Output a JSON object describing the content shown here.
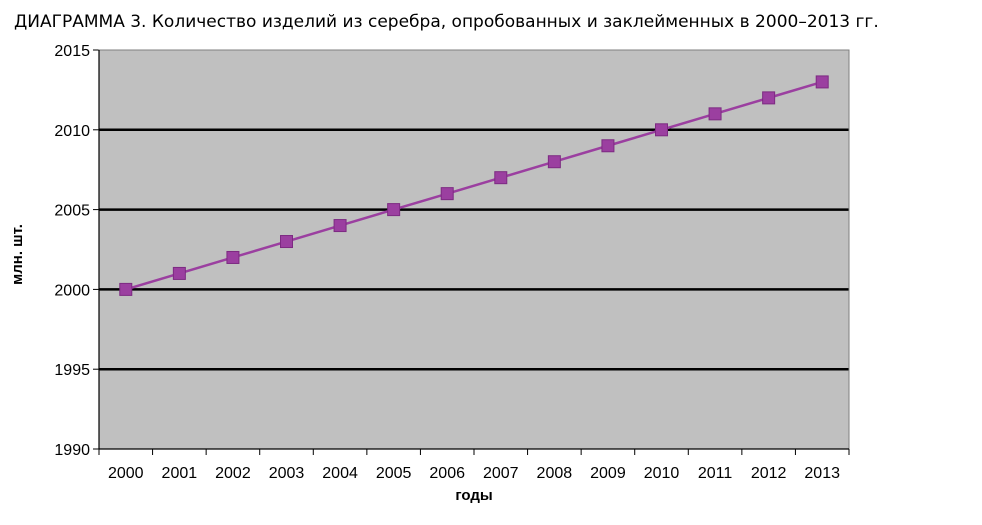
{
  "chart_data": {
    "type": "line",
    "title": "ДИАГРАММА 3. Количество изделий из серебра, опробованных и заклейменных в 2000–2013 гг.",
    "xlabel": "годы",
    "ylabel": "млн. шт.",
    "categories": [
      "2000",
      "2001",
      "2002",
      "2003",
      "2004",
      "2005",
      "2006",
      "2007",
      "2008",
      "2009",
      "2010",
      "2011",
      "2012",
      "2013"
    ],
    "series": [
      {
        "name": "Количество изделий",
        "values": [
          2000,
          2001,
          2002,
          2003,
          2004,
          2005,
          2006,
          2007,
          2008,
          2009,
          2010,
          2011,
          2012,
          2013
        ],
        "color": "#9b3fa0"
      }
    ],
    "ylim": [
      1990,
      2015
    ],
    "yticks": [
      "1990",
      "1995",
      "2000",
      "2005",
      "2010",
      "2015"
    ],
    "grid": true,
    "plot_background": "#c0c0c0"
  }
}
